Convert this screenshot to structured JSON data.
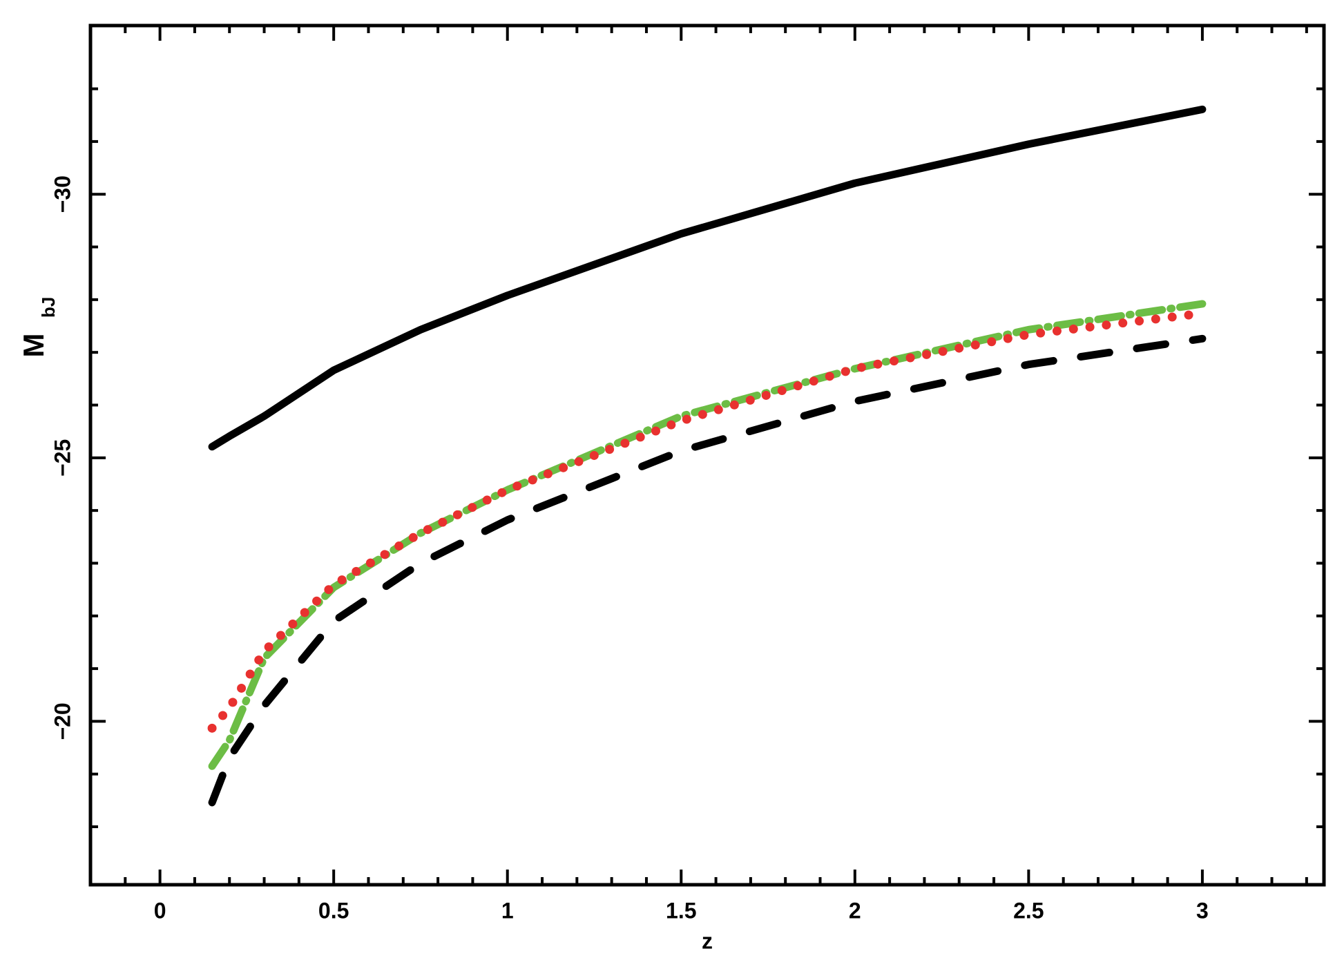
{
  "chart_data": {
    "type": "line",
    "xlabel": "z",
    "ylabel": "M",
    "ylabel_sub": "bJ",
    "xlim": [
      -0.2,
      3.35
    ],
    "ylim": [
      -16.9,
      -33.2
    ],
    "xticks": [
      0,
      0.5,
      1,
      1.5,
      2,
      2.5,
      3
    ],
    "yticks": [
      {
        "value": -20,
        "label": "−20"
      },
      {
        "value": -25,
        "label": "−25"
      },
      {
        "value": -30,
        "label": "−30"
      }
    ],
    "xminorticks": [
      -0.1,
      0.1,
      0.2,
      0.3,
      0.4,
      0.6,
      0.7,
      0.8,
      0.9,
      1.1,
      1.2,
      1.3,
      1.4,
      1.6,
      1.7,
      1.8,
      1.9,
      2.1,
      2.2,
      2.3,
      2.4,
      2.6,
      2.7,
      2.8,
      2.9,
      3.1,
      3.2,
      3.3
    ],
    "yminorticks": [
      -18,
      -19,
      -21,
      -22,
      -23,
      -24,
      -26,
      -27,
      -28,
      -29,
      -31,
      -32
    ],
    "x": [
      0.15,
      0.2,
      0.3,
      0.5,
      0.75,
      1,
      1.5,
      2,
      2.5,
      3
    ],
    "series": [
      {
        "color": "#000000",
        "dash": "solid",
        "values": [
          -25.21,
          -25.41,
          -25.79,
          -26.66,
          -27.43,
          -28.08,
          -29.25,
          -30.21,
          -30.95,
          -31.61
        ]
      },
      {
        "color": "#6cbd45",
        "dash": "dashdot",
        "values": [
          -19.15,
          -19.64,
          -21.2,
          -22.54,
          -23.57,
          -24.39,
          -25.79,
          -26.69,
          -27.43,
          -27.92
        ]
      },
      {
        "color": "#e8312f",
        "dash": "dotted",
        "values": [
          -19.87,
          -20.26,
          -21.33,
          -22.59,
          -23.57,
          -24.39,
          -25.7,
          -26.69,
          -27.34,
          -27.74
        ]
      },
      {
        "color": "#000000",
        "dash": "dashed",
        "values": [
          -18.46,
          -19.31,
          -20.3,
          -21.9,
          -23.0,
          -23.82,
          -25.13,
          -26.07,
          -26.77,
          -27.26
        ]
      }
    ]
  }
}
